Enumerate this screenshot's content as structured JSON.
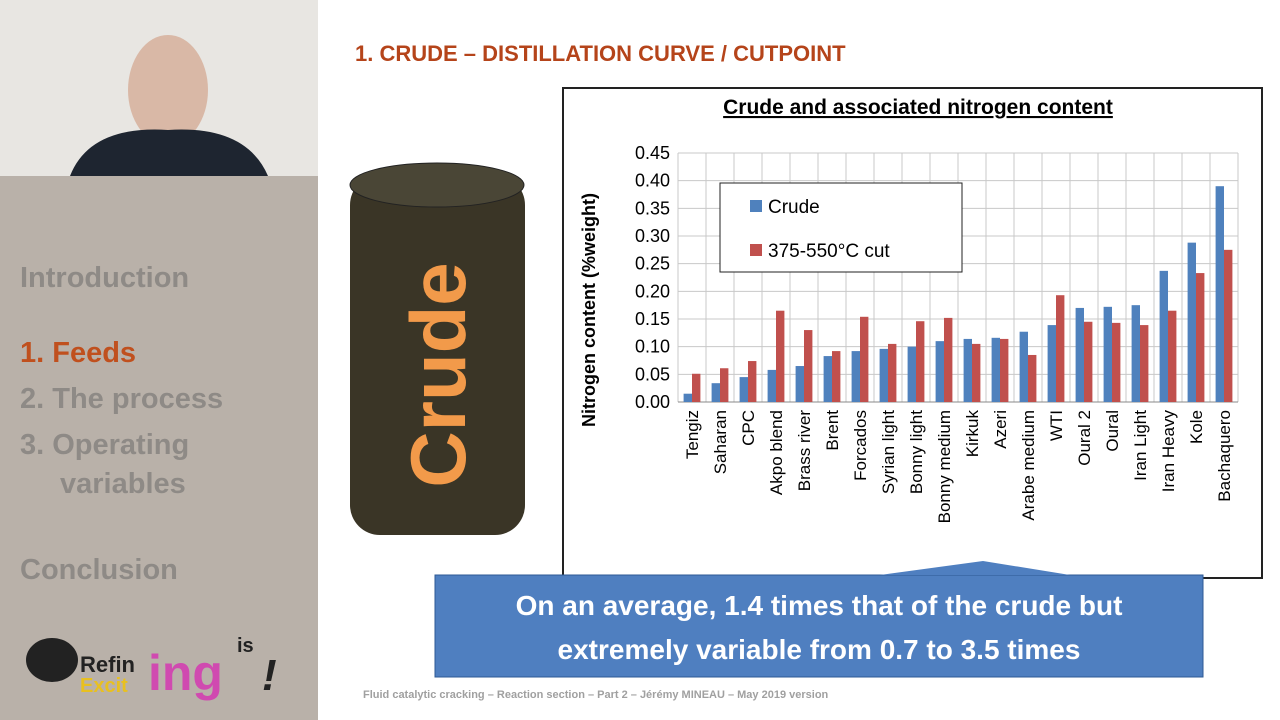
{
  "slide": {
    "title": "1. CRUDE – DISTILLATION CURVE / CUTPOINT",
    "menu": [
      "Introduction",
      "1. Feeds",
      "2. The process",
      "3. Operating",
      "variables",
      "Conclusion"
    ],
    "barrel_label": "Crude",
    "callout": [
      "On an average, 1.4 times that of the crude but",
      "extremely variable from 0.7 to 3.5 times"
    ],
    "footer": "Fluid catalytic cracking – Reaction section – Part 2 – Jérémy MINEAU – May 2019 version",
    "logo": [
      "Refin",
      "Excit",
      "ing",
      "is",
      "!"
    ]
  },
  "chart_data": {
    "type": "bar",
    "title": "Crude and associated nitrogen content",
    "y_label": "Nitrogen content (%weight)",
    "categories": [
      "Tengiz",
      "Saharan",
      "CPC",
      "Akpo blend",
      "Brass river",
      "Brent",
      "Forcados",
      "Syrian light",
      "Bonny light",
      "Bonny medium",
      "Kirkuk",
      "Azeri",
      "Arabe medium",
      "WTI",
      "Oural 2",
      "Oural",
      "Iran Light",
      "Iran Heavy",
      "Kole",
      "Bachaquero"
    ],
    "series": [
      {
        "name": "Crude",
        "color": "#4f81bd",
        "values": [
          0.015,
          0.034,
          0.045,
          0.058,
          0.065,
          0.083,
          0.092,
          0.096,
          0.1,
          0.11,
          0.114,
          0.116,
          0.127,
          0.139,
          0.17,
          0.172,
          0.175,
          0.237,
          0.288,
          0.39
        ]
      },
      {
        "name": "375-550°C cut",
        "color": "#c0504d",
        "values": [
          0.051,
          0.061,
          0.074,
          0.165,
          0.13,
          0.092,
          0.154,
          0.105,
          0.146,
          0.152,
          0.105,
          0.114,
          0.085,
          0.193,
          0.145,
          0.143,
          0.139,
          0.165,
          0.233,
          0.275
        ]
      }
    ],
    "ylim": [
      0,
      0.45
    ],
    "yticks": [
      {
        "value": 0,
        "label": "0.00"
      },
      {
        "value": 0.05,
        "label": "0.05"
      },
      {
        "value": 0.1,
        "label": "0.10"
      },
      {
        "value": 0.15,
        "label": "0.15"
      },
      {
        "value": 0.2,
        "label": "0.20"
      },
      {
        "value": 0.25,
        "label": "0.25"
      },
      {
        "value": 0.3,
        "label": "0.30"
      },
      {
        "value": 0.35,
        "label": "0.35"
      },
      {
        "value": 0.4,
        "label": "0.40"
      },
      {
        "value": 0.45,
        "label": "0.45"
      }
    ],
    "grid": true
  }
}
